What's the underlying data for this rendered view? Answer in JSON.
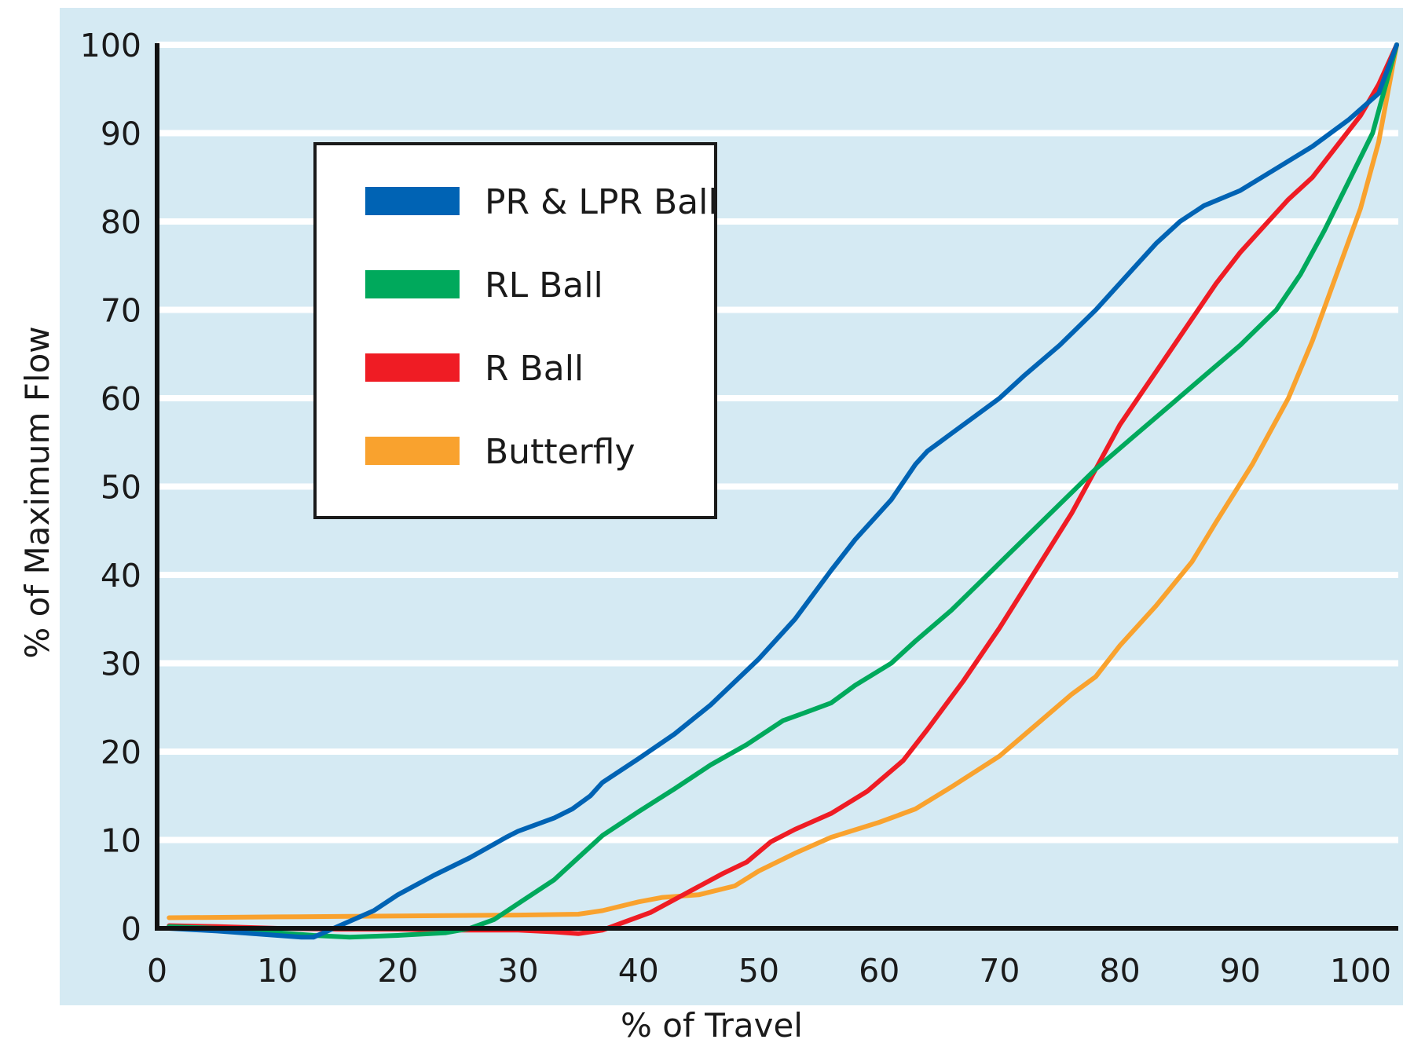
{
  "chart_data": {
    "type": "line",
    "title": "",
    "xlabel": "% of Travel",
    "ylabel": "% of Maximum Flow",
    "xlim": [
      0,
      103
    ],
    "ylim": [
      0,
      100
    ],
    "xticks": [
      0,
      10,
      20,
      30,
      40,
      50,
      60,
      70,
      80,
      90,
      100
    ],
    "yticks": [
      0,
      10,
      20,
      30,
      40,
      50,
      60,
      70,
      80,
      90,
      100
    ],
    "grid": true,
    "legend_position": "upper-left",
    "colors": {
      "plot_background": "#d5eaf3",
      "gridline": "#ffffff",
      "axis": "#111111"
    },
    "series": [
      {
        "name": "PR & LPR Ball",
        "color": "#0063b4",
        "points": [
          [
            1,
            0
          ],
          [
            5,
            -0.3
          ],
          [
            9,
            -0.7
          ],
          [
            12,
            -1
          ],
          [
            13,
            -1
          ],
          [
            15,
            0.2
          ],
          [
            18,
            2
          ],
          [
            20,
            3.8
          ],
          [
            23,
            6
          ],
          [
            26,
            8
          ],
          [
            29,
            10.3
          ],
          [
            30,
            11
          ],
          [
            33,
            12.5
          ],
          [
            34.5,
            13.5
          ],
          [
            36,
            15
          ],
          [
            37,
            16.5
          ],
          [
            40,
            19.2
          ],
          [
            43,
            22
          ],
          [
            46,
            25.3
          ],
          [
            50,
            30.5
          ],
          [
            53,
            35
          ],
          [
            56,
            40.5
          ],
          [
            58,
            44
          ],
          [
            61,
            48.5
          ],
          [
            63,
            52.5
          ],
          [
            64,
            54
          ],
          [
            65,
            55
          ],
          [
            66,
            56
          ],
          [
            68,
            58
          ],
          [
            70,
            60
          ],
          [
            72,
            62.5
          ],
          [
            75,
            66
          ],
          [
            78,
            70
          ],
          [
            81,
            74.5
          ],
          [
            83,
            77.5
          ],
          [
            85,
            80
          ],
          [
            87,
            81.8
          ],
          [
            90,
            83.5
          ],
          [
            93,
            86
          ],
          [
            96,
            88.5
          ],
          [
            99,
            91.5
          ],
          [
            101.5,
            94.5
          ],
          [
            103,
            100
          ]
        ]
      },
      {
        "name": "RL Ball",
        "color": "#00a95c",
        "points": [
          [
            1,
            0.2
          ],
          [
            5,
            0
          ],
          [
            9,
            -0.4
          ],
          [
            13,
            -0.8
          ],
          [
            16,
            -1
          ],
          [
            20,
            -0.8
          ],
          [
            24,
            -0.5
          ],
          [
            26,
            0
          ],
          [
            28,
            1
          ],
          [
            30,
            2.8
          ],
          [
            33,
            5.5
          ],
          [
            35,
            8
          ],
          [
            37,
            10.5
          ],
          [
            40,
            13.2
          ],
          [
            43,
            15.8
          ],
          [
            46,
            18.5
          ],
          [
            49,
            20.8
          ],
          [
            52,
            23.5
          ],
          [
            54,
            24.5
          ],
          [
            56,
            25.5
          ],
          [
            58,
            27.5
          ],
          [
            61,
            30
          ],
          [
            63,
            32.5
          ],
          [
            66,
            36
          ],
          [
            69,
            40
          ],
          [
            72,
            44
          ],
          [
            75,
            48
          ],
          [
            78,
            52
          ],
          [
            81,
            55.5
          ],
          [
            84,
            59
          ],
          [
            87,
            62.5
          ],
          [
            90,
            66
          ],
          [
            93,
            70
          ],
          [
            95,
            74
          ],
          [
            97,
            79
          ],
          [
            99,
            84.5
          ],
          [
            101,
            90
          ],
          [
            103,
            100
          ]
        ]
      },
      {
        "name": "R Ball",
        "color": "#ef1c24",
        "points": [
          [
            1,
            0.3
          ],
          [
            5,
            0.2
          ],
          [
            10,
            0
          ],
          [
            15,
            -0.1
          ],
          [
            20,
            -0.1
          ],
          [
            25,
            -0.2
          ],
          [
            30,
            -0.2
          ],
          [
            33,
            -0.4
          ],
          [
            35,
            -0.6
          ],
          [
            37,
            -0.2
          ],
          [
            39,
            0.8
          ],
          [
            41,
            1.8
          ],
          [
            44,
            4
          ],
          [
            47,
            6.2
          ],
          [
            49,
            7.5
          ],
          [
            51,
            9.8
          ],
          [
            53,
            11.2
          ],
          [
            56,
            13
          ],
          [
            59,
            15.5
          ],
          [
            62,
            19
          ],
          [
            64,
            22.5
          ],
          [
            67,
            28
          ],
          [
            70,
            34
          ],
          [
            73,
            40.5
          ],
          [
            76,
            47
          ],
          [
            78,
            52
          ],
          [
            80,
            57
          ],
          [
            83,
            63
          ],
          [
            86,
            69
          ],
          [
            88,
            73
          ],
          [
            90,
            76.5
          ],
          [
            92,
            79.5
          ],
          [
            94,
            82.5
          ],
          [
            96,
            85
          ],
          [
            98,
            88.5
          ],
          [
            100,
            92
          ],
          [
            101.5,
            95.5
          ],
          [
            103,
            100
          ]
        ]
      },
      {
        "name": "Butterfly",
        "color": "#f9a22e",
        "points": [
          [
            1,
            1.2
          ],
          [
            10,
            1.3
          ],
          [
            20,
            1.4
          ],
          [
            30,
            1.5
          ],
          [
            35,
            1.6
          ],
          [
            37,
            2
          ],
          [
            40,
            3
          ],
          [
            42,
            3.5
          ],
          [
            45,
            3.8
          ],
          [
            48,
            4.8
          ],
          [
            50,
            6.5
          ],
          [
            53,
            8.5
          ],
          [
            56,
            10.3
          ],
          [
            60,
            12
          ],
          [
            63,
            13.5
          ],
          [
            66,
            16
          ],
          [
            70,
            19.5
          ],
          [
            73,
            23
          ],
          [
            76,
            26.5
          ],
          [
            78,
            28.5
          ],
          [
            80,
            32
          ],
          [
            83,
            36.5
          ],
          [
            86,
            41.5
          ],
          [
            88,
            46
          ],
          [
            91,
            52.5
          ],
          [
            94,
            60
          ],
          [
            96,
            66.5
          ],
          [
            98,
            74
          ],
          [
            100,
            81.5
          ],
          [
            101.5,
            89
          ],
          [
            103,
            100
          ]
        ]
      }
    ]
  }
}
